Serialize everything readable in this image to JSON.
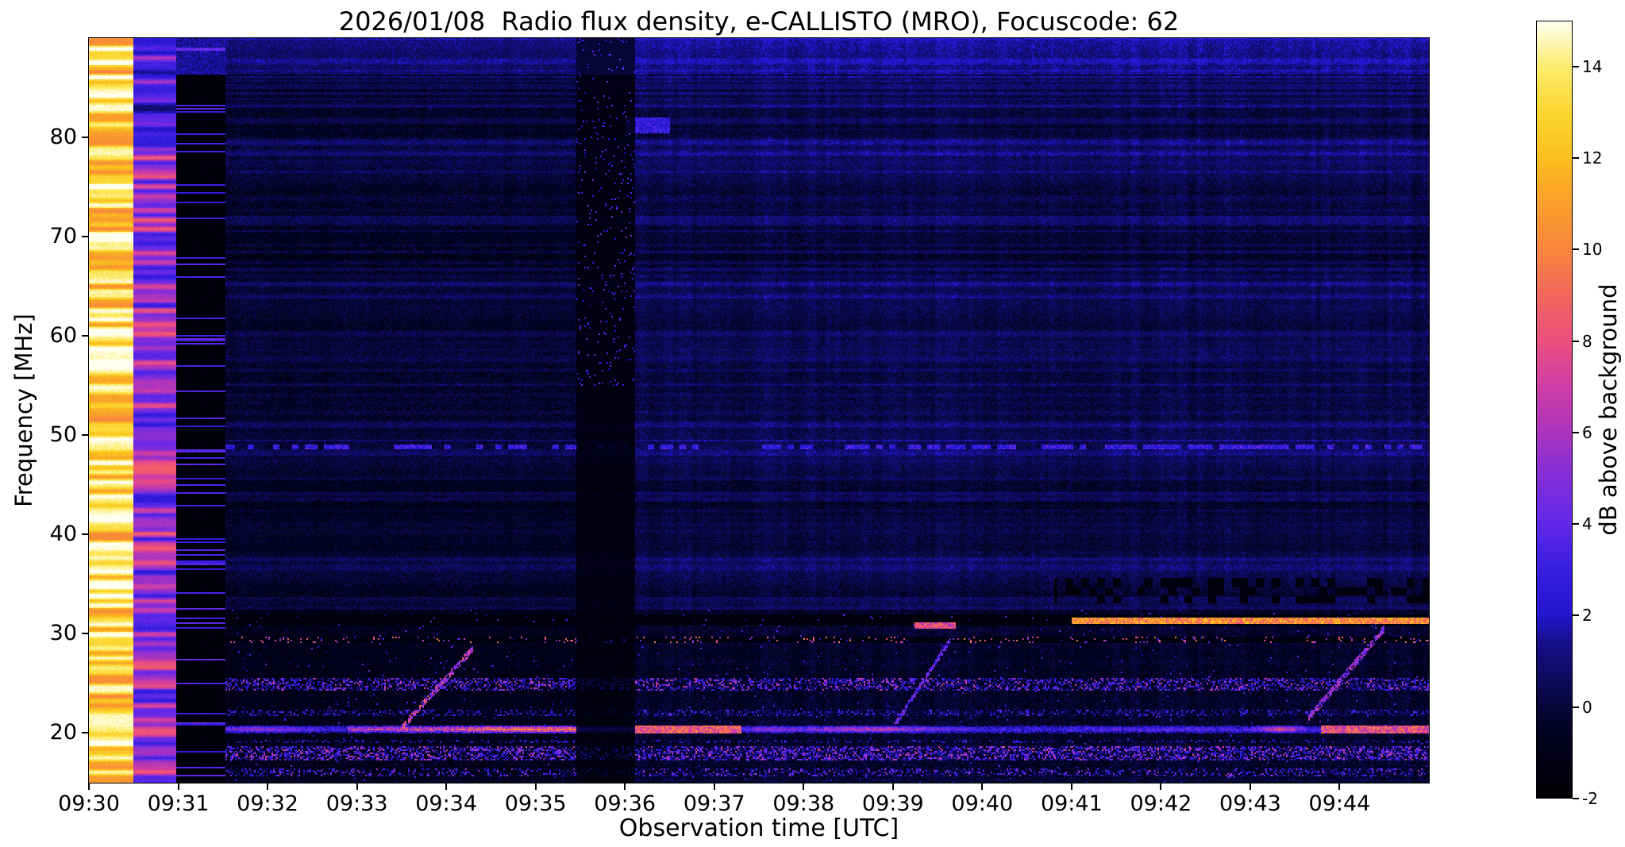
{
  "chart_data": {
    "type": "heatmap",
    "subtype": "radio-spectrogram",
    "title": "2026/01/08  Radio flux density, e-CALLISTO (MRO), Focuscode: 62",
    "xlabel": "Observation time [UTC]",
    "ylabel": "Frequency [MHz]",
    "x_range_minutes": [
      0,
      15
    ],
    "x_start": "09:30",
    "x_ticks": [
      "09:30",
      "09:31",
      "09:32",
      "09:33",
      "09:34",
      "09:35",
      "09:36",
      "09:37",
      "09:38",
      "09:39",
      "09:40",
      "09:41",
      "09:42",
      "09:43",
      "09:44"
    ],
    "y_range": [
      15,
      90
    ],
    "y_ticks": [
      20,
      30,
      40,
      50,
      60,
      70,
      80
    ],
    "colorbar": {
      "label": "dB above background",
      "range": [
        -2,
        15
      ],
      "ticks": [
        -2,
        0,
        2,
        4,
        6,
        8,
        10,
        12,
        14
      ],
      "colormap": [
        {
          "v": 0.0,
          "c": "#000004"
        },
        {
          "v": 0.08,
          "c": "#03021f"
        },
        {
          "v": 0.118,
          "c": "#08063a"
        },
        {
          "v": 0.2,
          "c": "#150f8a"
        },
        {
          "v": 0.235,
          "c": "#2316cf"
        },
        {
          "v": 0.3,
          "c": "#3b1fe0"
        },
        {
          "v": 0.353,
          "c": "#6128e8"
        },
        {
          "v": 0.43,
          "c": "#8c2fd2"
        },
        {
          "v": 0.471,
          "c": "#ab34bd"
        },
        {
          "v": 0.53,
          "c": "#cf3da4"
        },
        {
          "v": 0.588,
          "c": "#ea4f7f"
        },
        {
          "v": 0.65,
          "c": "#f4685c"
        },
        {
          "v": 0.706,
          "c": "#f8863c"
        },
        {
          "v": 0.78,
          "c": "#f9a428"
        },
        {
          "v": 0.824,
          "c": "#fabf1e"
        },
        {
          "v": 0.88,
          "c": "#fbd52f"
        },
        {
          "v": 0.941,
          "c": "#fcec6d"
        },
        {
          "v": 1.0,
          "c": "#fffff0"
        }
      ]
    },
    "features": {
      "calibration_segments": [
        {
          "t0": 0.0,
          "t1": 0.5,
          "base": 13.0,
          "amp": 3.0,
          "seed": 201,
          "desc": "saturated white/yellow striped calibration column at 09:30:00-09:30:30"
        },
        {
          "t0": 0.5,
          "t1": 0.97,
          "base": 5.5,
          "amp": 3.2,
          "seed": 202,
          "blue_top": true,
          "desc": "magenta/pink/blue striped column 09:30:30-09:31:00"
        },
        {
          "t0": 0.97,
          "t1": 1.53,
          "base": -1.85,
          "amp": 0,
          "seed": 203,
          "sparse": 0.1,
          "sparse_val": 2.2,
          "desc": "near-black column with sparse blue rows 09:31:00-09:31:30"
        }
      ],
      "background": {
        "left_level": -0.75,
        "right_level": -0.22,
        "transition_t": 6.12,
        "noise_amp": 0.95
      },
      "vertical_lane": {
        "t0": 5.45,
        "t1": 6.12,
        "level": -1.75,
        "speckle_fmin": 55,
        "speckle_prob": 0.04,
        "desc": "dark data-gap lane near 09:35:30-09:36:10 with blue speckles at high frequencies"
      },
      "top_band": {
        "fmin": 86.3,
        "boost": 1.35
      },
      "rfi_bands": [
        {
          "name": "49 MHz dashed line",
          "f0": 48.55,
          "f1": 49.05,
          "mode": "dashed",
          "duty": 0.5,
          "val": 2.0,
          "varamp": 2.6
        },
        {
          "name": "31-32 MHz dark band",
          "f0": 30.9,
          "f1": 31.95,
          "mode": "dark",
          "val": -1.8
        },
        {
          "name": "31.3 MHz strong carrier after 09:41",
          "f0": 31.05,
          "f1": 31.7,
          "mode": "bright",
          "t0": 11.0,
          "t1": 15,
          "val": 9.5,
          "varamp": 4.5
        },
        {
          "name": "31 MHz burst near 09:39",
          "f0": 30.55,
          "f1": 31.15,
          "mode": "bright",
          "t0": 9.25,
          "t1": 9.7,
          "val": 7.0,
          "varamp": 3.5
        },
        {
          "name": "29.5 MHz band",
          "f0": 29.15,
          "f1": 29.75,
          "mode": "dark_speckle",
          "val": -1.6,
          "prob": 0.07,
          "sval": 4.0,
          "svar": 6.0
        },
        {
          "name": "25 MHz speckle band",
          "f0": 24.2,
          "f1": 25.6,
          "mode": "speckle",
          "prob": 0.45,
          "sval": 1.2,
          "svar": 6.0
        },
        {
          "name": "22 MHz speckle band",
          "f0": 21.7,
          "f1": 22.4,
          "mode": "speckle",
          "prob": 0.3,
          "sval": 0.8,
          "svar": 3.5
        },
        {
          "name": "20.4 MHz broadcast band",
          "f0": 20.0,
          "f1": 20.75,
          "mode": "bright_var",
          "val": 3.2,
          "varamp": 5.5,
          "bright_t0": 2.9,
          "bright_t1": 5.45,
          "bright_boost": 5.0
        },
        {
          "name": "20.4 MHz bright after gap",
          "f0": 20.0,
          "f1": 20.7,
          "mode": "bright",
          "t0": 6.12,
          "t1": 7.3,
          "val": 7.5,
          "varamp": 4.0
        },
        {
          "name": "20.4 MHz bright near 09:44",
          "f0": 20.0,
          "f1": 20.7,
          "mode": "bright",
          "t0": 13.8,
          "t1": 15,
          "val": 7.0,
          "varamp": 4.5
        },
        {
          "name": "19.1 MHz line",
          "f0": 18.95,
          "f1": 19.35,
          "mode": "speckle",
          "prob": 0.25,
          "sval": 0.8,
          "svar": 3.0
        },
        {
          "name": "18 MHz band",
          "f0": 17.3,
          "f1": 18.6,
          "mode": "speckle",
          "prob": 0.5,
          "sval": 1.5,
          "svar": 6.0
        },
        {
          "name": "16 MHz band",
          "f0": 15.7,
          "f1": 16.5,
          "mode": "speckle",
          "prob": 0.3,
          "sval": 1.0,
          "svar": 5.0
        },
        {
          "name": "33-35.5 MHz dark dashed band after 09:41",
          "f0": 33.0,
          "f1": 35.6,
          "mode": "dark_dash",
          "t0": 10.8,
          "t1": 15,
          "val": -1.7,
          "duty": 0.45
        },
        {
          "name": "81 MHz blue patch after gap",
          "f0": 80.4,
          "f1": 82.0,
          "mode": "bright",
          "t0": 6.0,
          "t1": 6.5,
          "val": 2.3,
          "varamp": 2.0
        }
      ],
      "diagonal_streaks": [
        {
          "t0": 3.5,
          "t1": 4.3,
          "f0": 20.5,
          "f1": 28.5,
          "width": 0.35,
          "val": 5.0,
          "varamp": 6.0,
          "desc": "ionosonde sweep ~09:34"
        },
        {
          "t0": 9.0,
          "t1": 9.65,
          "f0": 20.5,
          "f1": 29.5,
          "width": 0.3,
          "val": 3.2,
          "varamp": 4.0,
          "desc": "ionosonde sweep ~09:39"
        },
        {
          "t0": 13.65,
          "t1": 14.5,
          "f0": 21.5,
          "f1": 30.5,
          "width": 0.35,
          "val": 4.2,
          "varamp": 4.5,
          "desc": "ionosonde sweep ~09:44"
        }
      ]
    }
  }
}
